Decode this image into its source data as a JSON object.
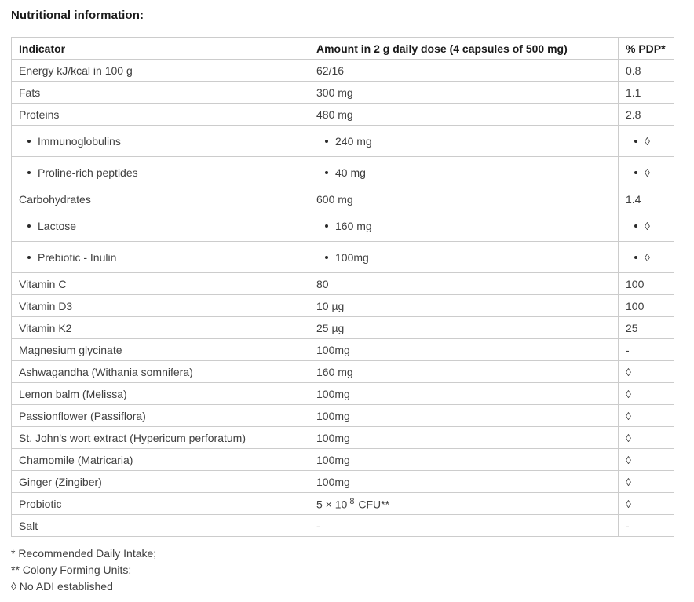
{
  "title": "Nutritional information:",
  "colors": {
    "border": "#cccccc",
    "heading_text": "#1a1a1a",
    "body_text": "#3f3f3f",
    "background": "#ffffff"
  },
  "table": {
    "headers": [
      "Indicator",
      "Amount in 2 g daily dose (4 capsules of 500 mg)",
      "% PDP*"
    ],
    "rows": [
      {
        "indicator": "Energy kJ/kcal in 100 g",
        "amount": "62/16",
        "pdp": "0.8"
      },
      {
        "indicator": "Fats",
        "amount": "300 mg",
        "pdp": "1.1"
      },
      {
        "indicator": "Proteins",
        "amount": "480 mg",
        "pdp": "2.8"
      },
      {
        "indicator": "Immunoglobulins",
        "amount": "240 mg",
        "pdp": "◊",
        "bulleted": true
      },
      {
        "indicator": "Proline-rich peptides",
        "amount": "40 mg",
        "pdp": "◊",
        "bulleted": true
      },
      {
        "indicator": "Carbohydrates",
        "amount": "600 mg",
        "pdp": "1.4"
      },
      {
        "indicator": "Lactose",
        "amount": "160 mg",
        "pdp": "◊",
        "bulleted": true
      },
      {
        "indicator": "Prebiotic - Inulin",
        "amount": "100mg",
        "pdp": "◊",
        "bulleted": true
      },
      {
        "indicator": "Vitamin C",
        "amount": "80",
        "pdp": "100"
      },
      {
        "indicator": "Vitamin D3",
        "amount": "10 µg",
        "pdp": "100"
      },
      {
        "indicator": "Vitamin K2",
        "amount": "25 µg",
        "pdp": "25"
      },
      {
        "indicator": "Magnesium glycinate",
        "amount": "100mg",
        "pdp": "-"
      },
      {
        "indicator": "Ashwagandha (Withania somnifera)",
        "amount": "160 mg",
        "pdp": "◊"
      },
      {
        "indicator": "Lemon balm (Melissa)",
        "amount": "100mg",
        "pdp": "◊"
      },
      {
        "indicator": "Passionflower (Passiflora)",
        "amount": "100mg",
        "pdp": "◊"
      },
      {
        "indicator": "St. John's wort extract (Hypericum perforatum)",
        "amount": "100mg",
        "pdp": "◊"
      },
      {
        "indicator": "Chamomile (Matricaria)",
        "amount": "100mg",
        "pdp": "◊"
      },
      {
        "indicator": "Ginger (Zingiber)",
        "amount": "100mg",
        "pdp": "◊"
      },
      {
        "indicator": "Probiotic",
        "amount_parts": {
          "prefix": "5 × 10",
          "sup": "8",
          "suffix": " CFU**"
        },
        "pdp": "◊"
      },
      {
        "indicator": "Salt",
        "amount": "-",
        "pdp": "-"
      }
    ]
  },
  "footnotes": [
    "* Recommended Daily Intake;",
    "** Colony Forming Units;",
    "◊ No ADI established"
  ]
}
